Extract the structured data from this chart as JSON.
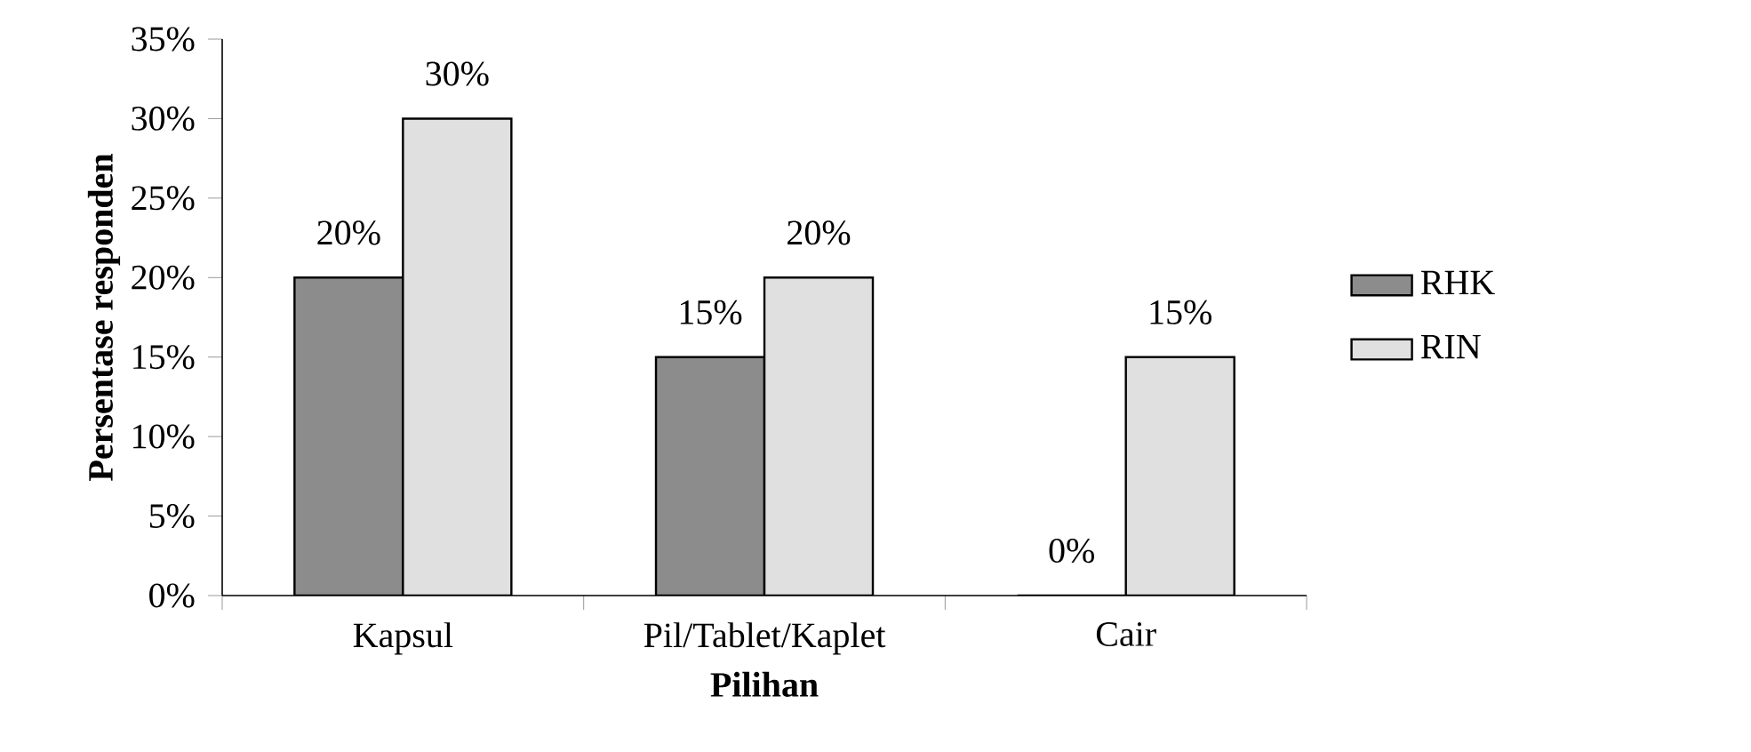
{
  "chart_data": {
    "type": "bar",
    "xlabel": "**Pilihan**",
    "ylabel": "**Persentase responden**",
    "categories": [
      "Kapsul",
      "Pil/Tablet/Kaplet",
      "Cair"
    ],
    "series": [
      {
        "name": "RHK",
        "color": "#8c8c8c",
        "values": [
          20,
          15,
          0
        ],
        "value_labels": [
          "20%",
          "15%",
          "0%"
        ]
      },
      {
        "name": "RIN",
        "color": "#e0e0e0",
        "values": [
          30,
          20,
          15
        ],
        "value_labels": [
          "30%",
          "20%",
          "15%"
        ]
      }
    ],
    "ylim": [
      0,
      35
    ],
    "yticks": [
      {
        "value": 0,
        "label": "0%"
      },
      {
        "value": 5,
        "label": "5%"
      },
      {
        "value": 10,
        "label": "10%"
      },
      {
        "value": 15,
        "label": "15%"
      },
      {
        "value": 20,
        "label": "20%"
      },
      {
        "value": 25,
        "label": "25%"
      },
      {
        "value": 30,
        "label": "30%"
      },
      {
        "value": 35,
        "label": "35%"
      }
    ],
    "grid": false,
    "legend": "right"
  }
}
